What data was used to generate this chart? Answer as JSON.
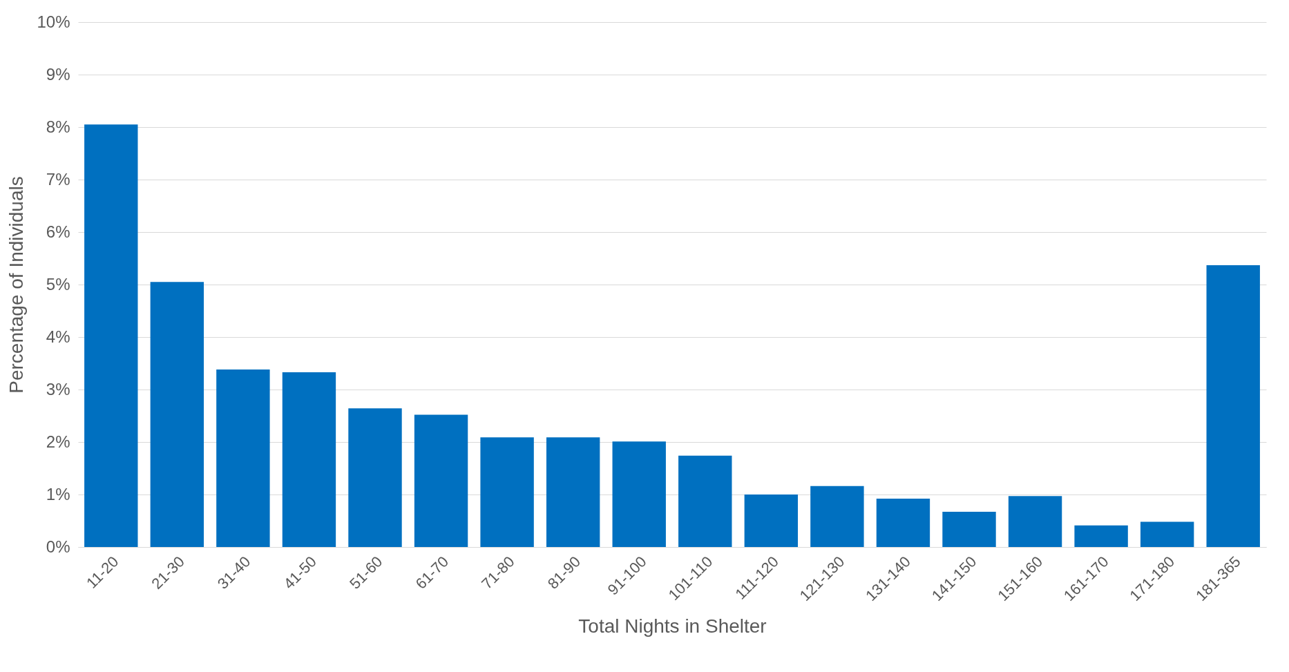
{
  "chart_data": {
    "type": "bar",
    "xlabel": "Total Nights in Shelter",
    "ylabel": "Percentage of Individuals",
    "categories": [
      "11-20",
      "21-30",
      "31-40",
      "41-50",
      "51-60",
      "61-70",
      "71-80",
      "81-90",
      "91-100",
      "101-110",
      "111-120",
      "121-130",
      "131-140",
      "141-150",
      "151-160",
      "161-170",
      "171-180",
      "181-365"
    ],
    "values": [
      8.05,
      5.05,
      3.38,
      3.33,
      2.64,
      2.52,
      2.09,
      2.09,
      2.01,
      1.74,
      1.0,
      1.16,
      0.92,
      0.67,
      0.97,
      0.41,
      0.48,
      5.37
    ],
    "color": "#0070c0",
    "ylim": [
      0,
      10
    ],
    "yticks": [
      {
        "value": 0,
        "label": "0%"
      },
      {
        "value": 1,
        "label": "1%"
      },
      {
        "value": 2,
        "label": "2%"
      },
      {
        "value": 3,
        "label": "3%"
      },
      {
        "value": 4,
        "label": "4%"
      },
      {
        "value": 5,
        "label": "5%"
      },
      {
        "value": 6,
        "label": "6%"
      },
      {
        "value": 7,
        "label": "7%"
      },
      {
        "value": 8,
        "label": "8%"
      },
      {
        "value": 9,
        "label": "9%"
      },
      {
        "value": 10,
        "label": "10%"
      }
    ],
    "grid": "y"
  }
}
